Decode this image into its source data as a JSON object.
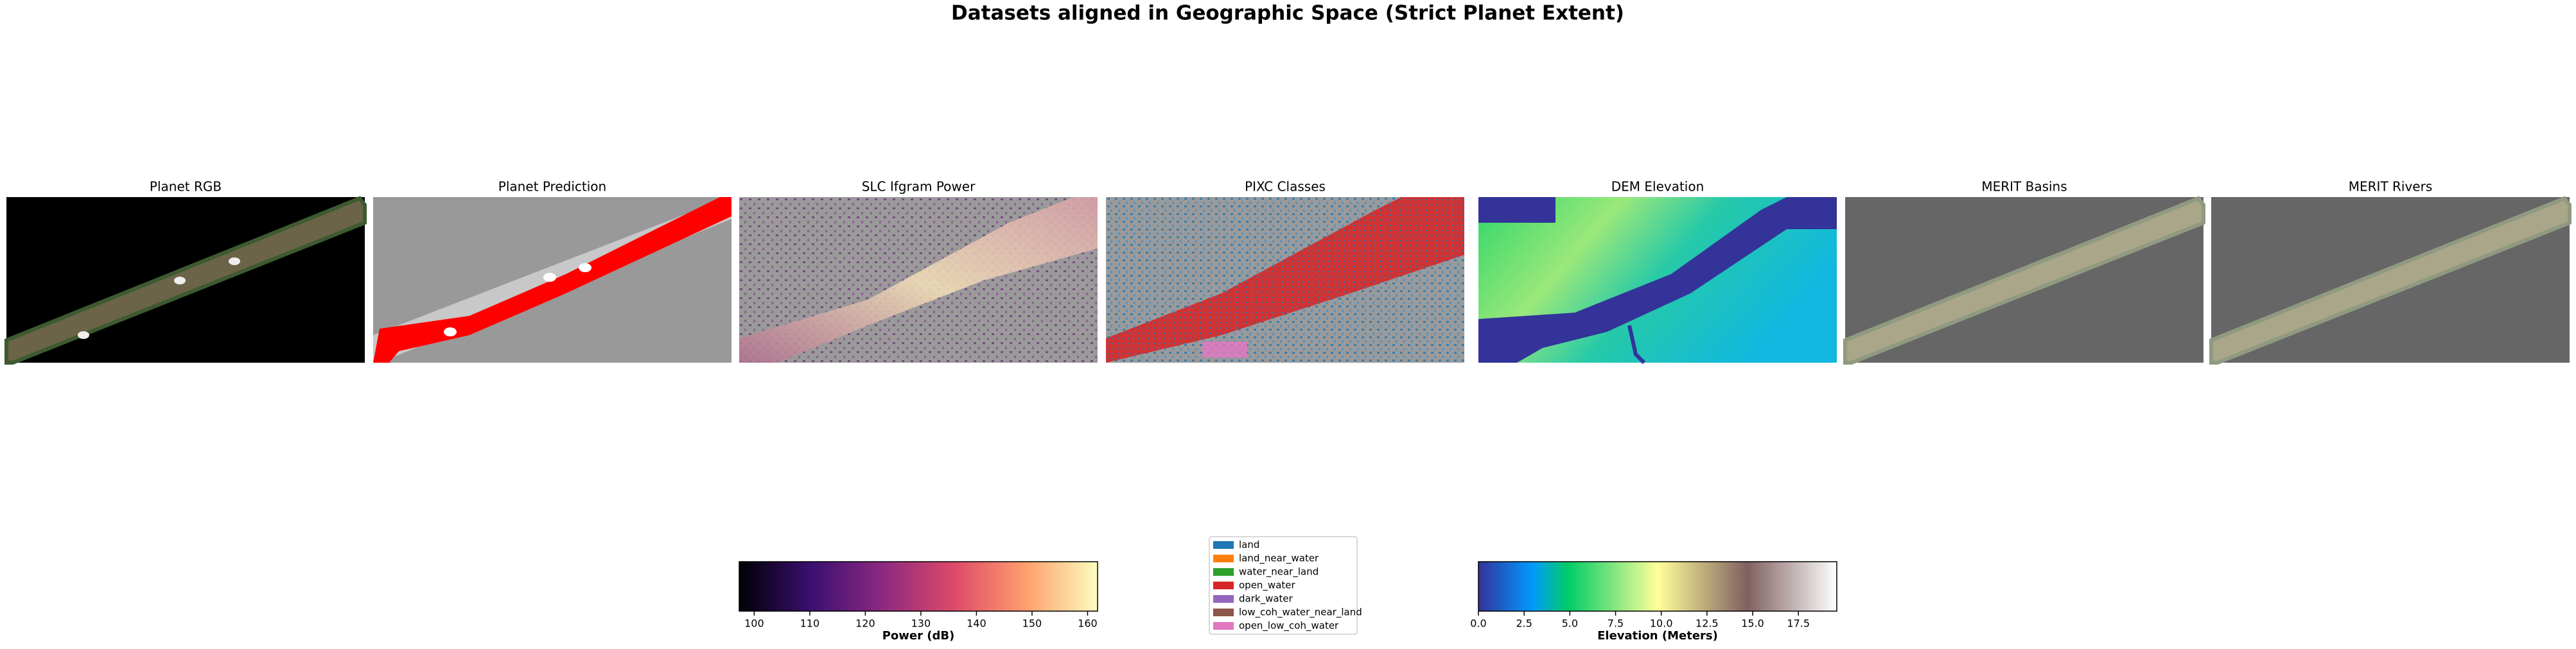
{
  "title": "Datasets aligned in Geographic Space (Strict Planet Extent)",
  "panels": [
    {
      "title": "Planet RGB"
    },
    {
      "title": "Planet Prediction"
    },
    {
      "title": "SLC Ifgram Power"
    },
    {
      "title": "PIXC Classes"
    },
    {
      "title": "DEM Elevation"
    },
    {
      "title": "MERIT Basins"
    },
    {
      "title": "MERIT Rivers"
    }
  ],
  "colorbars": [
    {
      "label": "Power (dB)",
      "clim": [
        97.3,
        161.8
      ],
      "ticks": [
        100,
        110,
        120,
        130,
        140,
        150,
        160
      ]
    },
    {
      "label": "Elevation (Meters)",
      "clim": [
        0,
        19.6
      ],
      "ticks": [
        {
          "value": 0,
          "label": "0.0"
        },
        2.5,
        {
          "value": 5,
          "label": "5.0"
        },
        7.5,
        {
          "value": 10,
          "label": "10.0"
        },
        12.5,
        {
          "value": 15,
          "label": "15.0"
        },
        17.5
      ]
    }
  ],
  "legend": {
    "entries": [
      {
        "name": "land",
        "color": "#1f77b4"
      },
      {
        "name": "land_near_water",
        "color": "#ff7f0e"
      },
      {
        "name": "water_near_land",
        "color": "#2ca02c"
      },
      {
        "name": "open_water",
        "color": "#d62728"
      },
      {
        "name": "dark_water",
        "color": "#9467bd"
      },
      {
        "name": "low_coh_water_near_land",
        "color": "#8c564b"
      },
      {
        "name": "open_low_coh_water",
        "color": "#e377c2"
      }
    ]
  }
}
